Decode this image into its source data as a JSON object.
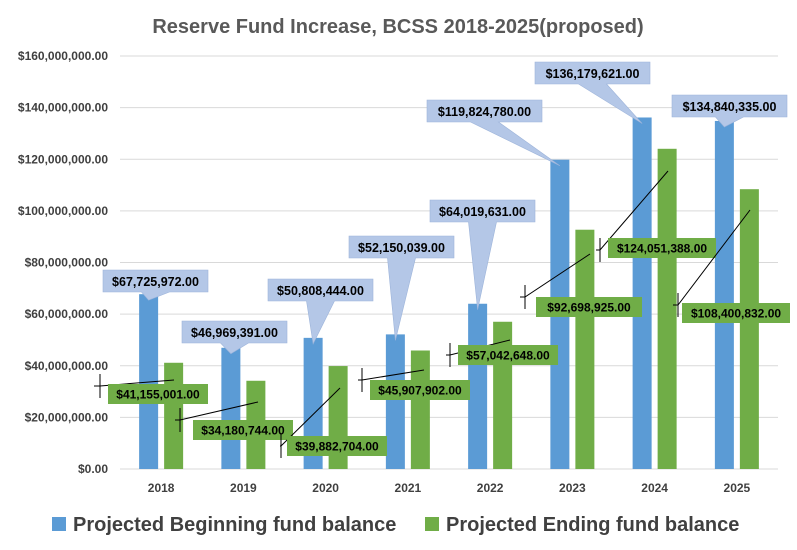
{
  "chart_data": {
    "type": "bar",
    "title": "Reserve Fund Increase, BCSS 2018-2025(proposed)",
    "categories": [
      "2018",
      "2019",
      "2020",
      "2021",
      "2022",
      "2023",
      "2024",
      "2025"
    ],
    "series": [
      {
        "name": "Projected Beginning fund balance",
        "color": "#5B9BD5",
        "values": [
          67725972,
          46969391,
          50808444,
          52150039,
          64019631,
          119824780,
          136179621,
          134840335
        ],
        "labels": [
          "$67,725,972.00",
          "$46,969,391.00",
          "$50,808,444.00",
          "$52,150,039.00",
          "$64,019,631.00",
          "$119,824,780.00",
          "$136,179,621.00",
          "$134,840,335.00"
        ]
      },
      {
        "name": "Projected Ending fund balance",
        "color": "#70AD47",
        "values": [
          41155001,
          34180744,
          39882704,
          45907902,
          57042648,
          92698925,
          124051388,
          108400832
        ],
        "labels": [
          "$41,155,001.00",
          "$34,180,744.00",
          "$39,882,704.00",
          "$45,907,902.00",
          "$57,042,648.00",
          "$92,698,925.00",
          "$124,051,388.00",
          "$108,400,832.00"
        ]
      }
    ],
    "ylim": [
      0,
      160000000
    ],
    "yticks": [
      0,
      20000000,
      40000000,
      60000000,
      80000000,
      100000000,
      120000000,
      140000000,
      160000000
    ],
    "ytick_labels": [
      "$0.00",
      "$20,000,000.00",
      "$40,000,000.00",
      "$60,000,000.00",
      "$80,000,000.00",
      "$100,000,000.00",
      "$120,000,000.00",
      "$140,000,000.00",
      "$160,000,000.00"
    ],
    "grid": true,
    "legend": "bottom",
    "callout_colors": {
      "beginning": "#B4C7E7",
      "ending": "#70AD47"
    }
  }
}
